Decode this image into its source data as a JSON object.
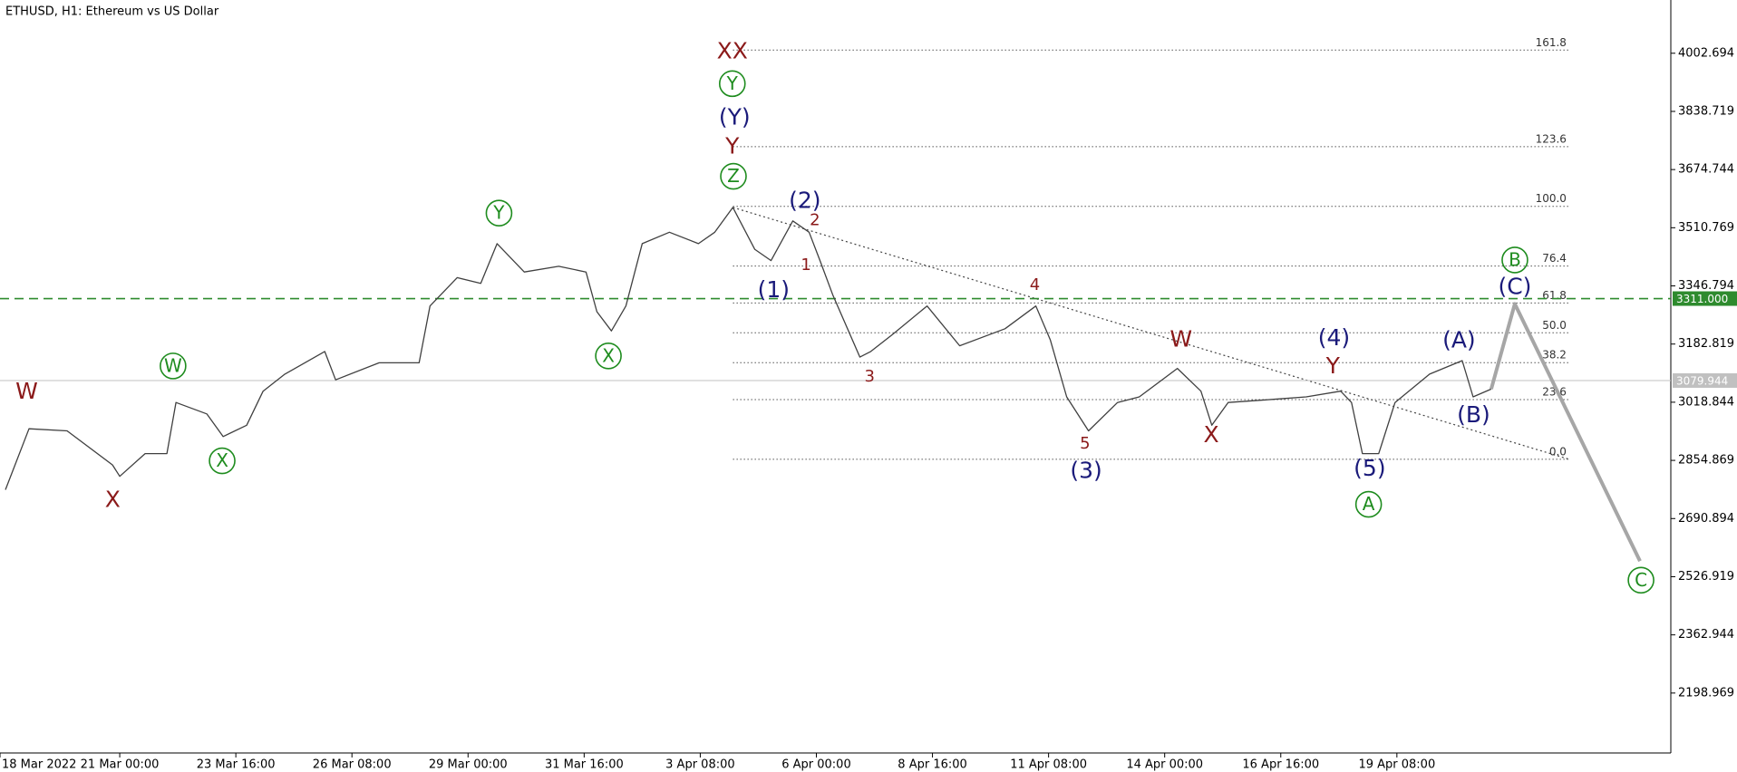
{
  "chart_data": {
    "type": "line",
    "title": "ETHUSD, H1:  Ethereum vs US Dollar",
    "xlim": [
      "2022-03-18T06:00",
      "2022-04-25T15:00"
    ],
    "xticks": [
      {
        "value": "2022-03-18T06:00",
        "label": "18 Mar 2022"
      },
      {
        "value": "2022-03-21T00:00",
        "label": "21 Mar 00:00"
      },
      {
        "value": "2022-03-23T16:00",
        "label": "23 Mar 16:00"
      },
      {
        "value": "2022-03-26T08:00",
        "label": "26 Mar 08:00"
      },
      {
        "value": "2022-03-29T00:00",
        "label": "29 Mar 00:00"
      },
      {
        "value": "2022-03-31T16:00",
        "label": "31 Mar 16:00"
      },
      {
        "value": "2022-04-03T08:00",
        "label": "3 Apr 08:00"
      },
      {
        "value": "2022-04-06T00:00",
        "label": "6 Apr 00:00"
      },
      {
        "value": "2022-04-08T16:00",
        "label": "8 Apr 16:00"
      },
      {
        "value": "2022-04-11T08:00",
        "label": "11 Apr 08:00"
      },
      {
        "value": "2022-04-14T00:00",
        "label": "14 Apr 00:00"
      },
      {
        "value": "2022-04-16T16:00",
        "label": "16 Apr 16:00"
      },
      {
        "value": "2022-04-19T08:00",
        "label": "19 Apr 08:00"
      }
    ],
    "ylim": [
      2030,
      4140
    ],
    "yticks": [
      4002.694,
      3838.719,
      3674.744,
      3510.769,
      3346.794,
      3182.819,
      3018.844,
      2854.869,
      2690.894,
      2526.919,
      2362.944,
      2198.969
    ],
    "series": [
      {
        "color": "#404040",
        "x": [
          "2022-03-18T09:00",
          "2022-03-18T22:00",
          "2022-03-19T19:00",
          "2022-03-20T20:00",
          "2022-03-21T00:00",
          "2022-03-21T14:00",
          "2022-03-22T02:00",
          "2022-03-22T07:00",
          "2022-03-23T00:00",
          "2022-03-23T09:00",
          "2022-03-23T22:00",
          "2022-03-24T07:00",
          "2022-03-24T19:00",
          "2022-03-25T17:00",
          "2022-03-25T23:00",
          "2022-03-26T23:00",
          "2022-03-27T21:00",
          "2022-03-28T03:00",
          "2022-03-28T18:00",
          "2022-03-29T07:00",
          "2022-03-29T16:00",
          "2022-03-30T07:00",
          "2022-03-31T02:00",
          "2022-03-31T17:00",
          "2022-03-31T23:00",
          "2022-04-01T07:00",
          "2022-04-01T15:00",
          "2022-04-02T00:00",
          "2022-04-02T15:00",
          "2022-04-03T07:00",
          "2022-04-03T16:00",
          "2022-04-04T02:00",
          "2022-04-04T14:00",
          "2022-04-04T23:00",
          "2022-04-05T11:00",
          "2022-04-05T20:00",
          "2022-04-06T02:00",
          "2022-04-06T09:00",
          "2022-04-07T00:00",
          "2022-04-07T06:00",
          "2022-04-07T18:00",
          "2022-04-08T13:00",
          "2022-04-09T07:00",
          "2022-04-10T08:00",
          "2022-04-11T01:00",
          "2022-04-11T09:00",
          "2022-04-11T18:00",
          "2022-04-12T06:00",
          "2022-04-12T22:00",
          "2022-04-13T10:00",
          "2022-04-14T07:00",
          "2022-04-14T20:00",
          "2022-04-15T02:00",
          "2022-04-15T11:00",
          "2022-04-16T12:00",
          "2022-04-17T06:00",
          "2022-04-18T01:00",
          "2022-04-18T07:00",
          "2022-04-18T13:00",
          "2022-04-18T22:00",
          "2022-04-19T07:00",
          "2022-04-20T02:00",
          "2022-04-20T20:00",
          "2022-04-21T02:00",
          "2022-04-21T12:00"
        ],
        "values": [
          2772,
          2944,
          2938,
          2842,
          2810,
          2874,
          2874,
          3018,
          2986,
          2922,
          2954,
          3050,
          3098,
          3162,
          3082,
          3130,
          3130,
          3290,
          3370,
          3354,
          3466,
          3386,
          3402,
          3386,
          3274,
          3220,
          3290,
          3466,
          3498,
          3466,
          3498,
          3568,
          3450,
          3418,
          3530,
          3498,
          3418,
          3322,
          3146,
          3162,
          3210,
          3290,
          3178,
          3226,
          3290,
          3194,
          3034,
          2938,
          3018,
          3034,
          3114,
          3050,
          2954,
          3018,
          3027,
          3034,
          3050,
          3018,
          2874,
          2874,
          3018,
          3098,
          3136,
          3034,
          3056
        ]
      },
      {
        "color": "#a6a6a6",
        "x": [
          "2022-04-21T12:00",
          "2022-04-22T01:00",
          "2022-04-24T22:00"
        ],
        "values": [
          3056,
          3296,
          2571
        ]
      }
    ],
    "hlines": [
      {
        "value": 3311.0,
        "label": "3311.000",
        "color": "#2e8b2e",
        "style": "dashed"
      },
      {
        "value": 3079.944,
        "label": "3079.944",
        "color": "#c0c0c0",
        "style": "solid"
      }
    ],
    "fib": {
      "from": "2022-04-04T02:00",
      "to": "2022-04-23T07:00",
      "low": 2858,
      "high": 3571,
      "levels": [
        161.8,
        123.6,
        {
          "value": 100,
          "label": "100.0"
        },
        76.4,
        61.8,
        {
          "value": 50,
          "label": "50.0"
        },
        38.2,
        23.6,
        {
          "value": 0,
          "label": "0.0"
        }
      ]
    },
    "trendline": {
      "x": [
        "2022-04-04T02:00",
        "2022-04-23T07:00"
      ],
      "y": [
        3568,
        2858
      ]
    },
    "annotations": [
      {
        "text": "W",
        "color": "#8b1a1a",
        "circled": false
      },
      {
        "text": "X",
        "color": "#8b1a1a",
        "circled": false
      },
      {
        "text": "W",
        "color": "#1e8c1e",
        "circled": true
      },
      {
        "text": "X",
        "color": "#1e8c1e",
        "circled": true
      },
      {
        "text": "Y",
        "color": "#1e8c1e",
        "circled": true
      },
      {
        "text": "X",
        "color": "#1e8c1e",
        "circled": true
      },
      {
        "text": "XX",
        "color": "#8b1a1a",
        "circled": false
      },
      {
        "text": "Y",
        "color": "#1e8c1e",
        "circled": true
      },
      {
        "text": "(Y)",
        "color": "#1a1a7a",
        "circled": false
      },
      {
        "text": "Y",
        "color": "#8b1a1a",
        "circled": false
      },
      {
        "text": "Z",
        "color": "#1e8c1e",
        "circled": true
      },
      {
        "text": "(2)",
        "color": "#1a1a7a",
        "circled": false
      },
      {
        "text": "2",
        "color": "#8b1a1a",
        "circled": false
      },
      {
        "text": "1",
        "color": "#8b1a1a",
        "circled": false
      },
      {
        "text": "(1)",
        "color": "#1a1a7a",
        "circled": false
      },
      {
        "text": "3",
        "color": "#8b1a1a",
        "circled": false
      },
      {
        "text": "4",
        "color": "#8b1a1a",
        "circled": false
      },
      {
        "text": "5",
        "color": "#8b1a1a",
        "circled": false
      },
      {
        "text": "(3)",
        "color": "#1a1a7a",
        "circled": false
      },
      {
        "text": "W",
        "color": "#8b1a1a",
        "circled": false
      },
      {
        "text": "X",
        "color": "#8b1a1a",
        "circled": false
      },
      {
        "text": "(4)",
        "color": "#1a1a7a",
        "circled": false
      },
      {
        "text": "Y",
        "color": "#8b1a1a",
        "circled": false
      },
      {
        "text": "(5)",
        "color": "#1a1a7a",
        "circled": false
      },
      {
        "text": "A",
        "color": "#1e8c1e",
        "circled": true
      },
      {
        "text": "(A)",
        "color": "#1a1a7a",
        "circled": false
      },
      {
        "text": "(B)",
        "color": "#1a1a7a",
        "circled": false
      },
      {
        "text": "B",
        "color": "#1e8c1e",
        "circled": true
      },
      {
        "text": "(C)",
        "color": "#1a1a7a",
        "circled": false
      },
      {
        "text": "C",
        "color": "#1e8c1e",
        "circled": true
      }
    ]
  }
}
